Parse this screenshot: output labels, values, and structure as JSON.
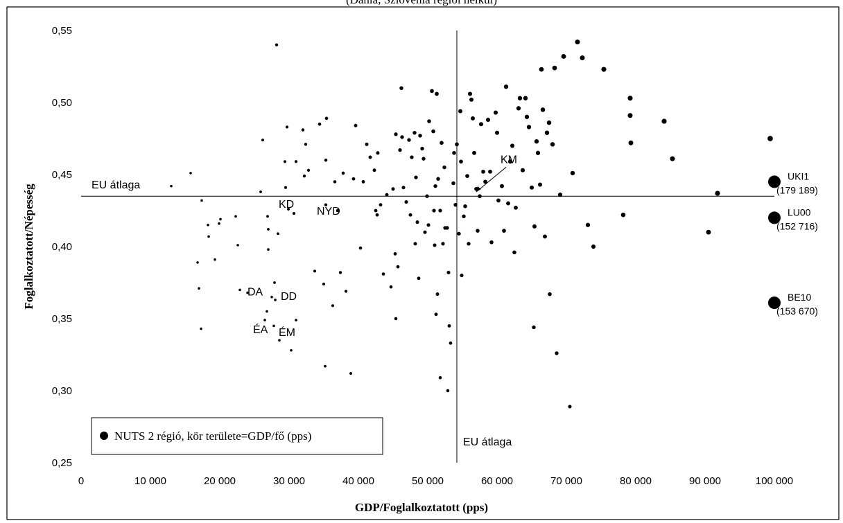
{
  "header": {
    "partial_title": "(Dánia, Szlovénia régiói nélkül)"
  },
  "chart_data": {
    "type": "scatter",
    "xlabel": "GDP/Foglalkoztatott (pps)",
    "ylabel": "Foglalkoztatott/Népesség",
    "xlim": [
      0,
      100000
    ],
    "ylim": [
      0.25,
      0.55
    ],
    "x_ticks": [
      "0",
      "10 000",
      "20 000",
      "30 000",
      "40 000",
      "50 000",
      "60 000",
      "70 000",
      "80 000",
      "90 000",
      "100 000"
    ],
    "y_ticks": [
      "0,25",
      "0,30",
      "0,35",
      "0,40",
      "0,45",
      "0,50",
      "0,55"
    ],
    "eu_average": {
      "x": 54200,
      "y": 0.435
    },
    "eu_avg_label_h": "EU átlaga",
    "eu_avg_label_v": "EU átlaga",
    "legend": "NUTS 2 régió, kör területe=GDP/fő (pps)",
    "labels": [
      {
        "text": "KD",
        "x": 28500,
        "y": 0.427
      },
      {
        "text": "NYD",
        "x": 34000,
        "y": 0.422
      },
      {
        "text": "DA",
        "x": 24000,
        "y": 0.366
      },
      {
        "text": "DD",
        "x": 28800,
        "y": 0.363
      },
      {
        "text": "ÉA",
        "x": 24800,
        "y": 0.34
      },
      {
        "text": "ÉM",
        "x": 28500,
        "y": 0.338
      },
      {
        "text": "KM",
        "x": 60500,
        "y": 0.458
      }
    ],
    "outliers": [
      {
        "code": "UKI1",
        "value": "(179 189)",
        "x": 100000,
        "y": 0.445
      },
      {
        "code": "LU00",
        "value": "(152 716)",
        "x": 100000,
        "y": 0.42
      },
      {
        "code": "BE10",
        "value": "(153 670)",
        "x": 100000,
        "y": 0.361
      }
    ],
    "points": [
      [
        28200,
        0.54
      ],
      [
        13000,
        0.442
      ],
      [
        15800,
        0.451
      ],
      [
        16800,
        0.389
      ],
      [
        17000,
        0.371
      ],
      [
        17400,
        0.432
      ],
      [
        17300,
        0.343
      ],
      [
        18300,
        0.415
      ],
      [
        18400,
        0.407
      ],
      [
        19300,
        0.391
      ],
      [
        19900,
        0.416
      ],
      [
        20100,
        0.419
      ],
      [
        22300,
        0.421
      ],
      [
        22600,
        0.401
      ],
      [
        22900,
        0.37
      ],
      [
        24000,
        0.368
      ],
      [
        25900,
        0.438
      ],
      [
        26200,
        0.474
      ],
      [
        26500,
        0.349
      ],
      [
        26800,
        0.355
      ],
      [
        26900,
        0.421
      ],
      [
        27000,
        0.412
      ],
      [
        27000,
        0.398
      ],
      [
        27500,
        0.365
      ],
      [
        27800,
        0.345
      ],
      [
        27900,
        0.375
      ],
      [
        28000,
        0.363
      ],
      [
        28400,
        0.409
      ],
      [
        28600,
        0.335
      ],
      [
        29400,
        0.459
      ],
      [
        29500,
        0.441
      ],
      [
        29700,
        0.483
      ],
      [
        29900,
        0.426
      ],
      [
        30300,
        0.328
      ],
      [
        30700,
        0.423
      ],
      [
        31000,
        0.459
      ],
      [
        31000,
        0.349
      ],
      [
        32000,
        0.481
      ],
      [
        32200,
        0.449
      ],
      [
        32400,
        0.471
      ],
      [
        32800,
        0.453
      ],
      [
        33700,
        0.383
      ],
      [
        34400,
        0.485
      ],
      [
        35000,
        0.374
      ],
      [
        35200,
        0.317
      ],
      [
        35300,
        0.46
      ],
      [
        35300,
        0.429
      ],
      [
        35400,
        0.489
      ],
      [
        36300,
        0.359
      ],
      [
        36600,
        0.445
      ],
      [
        37000,
        0.425
      ],
      [
        37400,
        0.382
      ],
      [
        37800,
        0.451
      ],
      [
        38200,
        0.369
      ],
      [
        38900,
        0.312
      ],
      [
        39300,
        0.447
      ],
      [
        39600,
        0.484
      ],
      [
        40300,
        0.399
      ],
      [
        40700,
        0.445
      ],
      [
        41200,
        0.471
      ],
      [
        41700,
        0.462
      ],
      [
        42300,
        0.453
      ],
      [
        42500,
        0.425
      ],
      [
        42700,
        0.422
      ],
      [
        42800,
        0.465
      ],
      [
        43200,
        0.429
      ],
      [
        43600,
        0.381
      ],
      [
        44100,
        0.436
      ],
      [
        44700,
        0.372
      ],
      [
        45000,
        0.44
      ],
      [
        45300,
        0.395
      ],
      [
        45400,
        0.478
      ],
      [
        45400,
        0.35
      ],
      [
        45700,
        0.386
      ],
      [
        46000,
        0.467
      ],
      [
        46200,
        0.51
      ],
      [
        46300,
        0.476
      ],
      [
        46500,
        0.441
      ],
      [
        46900,
        0.431
      ],
      [
        47300,
        0.474
      ],
      [
        47500,
        0.422
      ],
      [
        47700,
        0.462
      ],
      [
        48100,
        0.479
      ],
      [
        48200,
        0.402
      ],
      [
        48300,
        0.448
      ],
      [
        48500,
        0.417
      ],
      [
        48700,
        0.378
      ],
      [
        48900,
        0.477
      ],
      [
        49200,
        0.468
      ],
      [
        49400,
        0.461
      ],
      [
        49600,
        0.41
      ],
      [
        49900,
        0.435
      ],
      [
        50100,
        0.415
      ],
      [
        50200,
        0.487
      ],
      [
        50600,
        0.508
      ],
      [
        50800,
        0.48
      ],
      [
        50900,
        0.425
      ],
      [
        51000,
        0.401
      ],
      [
        51100,
        0.442
      ],
      [
        51200,
        0.353
      ],
      [
        51300,
        0.506
      ],
      [
        51400,
        0.367
      ],
      [
        51500,
        0.447
      ],
      [
        51800,
        0.425
      ],
      [
        51800,
        0.309
      ],
      [
        52000,
        0.472
      ],
      [
        52200,
        0.402
      ],
      [
        52400,
        0.455
      ],
      [
        52500,
        0.413
      ],
      [
        52800,
        0.413
      ],
      [
        52900,
        0.3
      ],
      [
        53000,
        0.382
      ],
      [
        53100,
        0.345
      ],
      [
        53300,
        0.333
      ],
      [
        53700,
        0.444
      ],
      [
        53800,
        0.465
      ],
      [
        54000,
        0.429
      ],
      [
        54200,
        0.471
      ],
      [
        54500,
        0.409
      ],
      [
        54700,
        0.494
      ],
      [
        54800,
        0.459
      ],
      [
        54900,
        0.38
      ],
      [
        55200,
        0.421
      ],
      [
        55400,
        0.428
      ],
      [
        55700,
        0.449
      ],
      [
        55900,
        0.402
      ],
      [
        56100,
        0.506
      ],
      [
        56300,
        0.502
      ],
      [
        56500,
        0.489
      ],
      [
        56700,
        0.465
      ],
      [
        57000,
        0.44
      ],
      [
        57200,
        0.411
      ],
      [
        57500,
        0.435
      ],
      [
        57700,
        0.485
      ],
      [
        58000,
        0.452
      ],
      [
        58300,
        0.445
      ],
      [
        58700,
        0.488
      ],
      [
        59000,
        0.452
      ],
      [
        59200,
        0.403
      ],
      [
        59800,
        0.493
      ],
      [
        60000,
        0.479
      ],
      [
        60200,
        0.432
      ],
      [
        60700,
        0.442
      ],
      [
        61000,
        0.411
      ],
      [
        61300,
        0.511
      ],
      [
        61600,
        0.43
      ],
      [
        61900,
        0.459
      ],
      [
        62200,
        0.47
      ],
      [
        62500,
        0.396
      ],
      [
        62700,
        0.427
      ],
      [
        63100,
        0.496
      ],
      [
        63300,
        0.503
      ],
      [
        63700,
        0.453
      ],
      [
        64100,
        0.503
      ],
      [
        64300,
        0.49
      ],
      [
        64600,
        0.483
      ],
      [
        65000,
        0.441
      ],
      [
        65300,
        0.344
      ],
      [
        65400,
        0.414
      ],
      [
        65700,
        0.473
      ],
      [
        65900,
        0.465
      ],
      [
        66200,
        0.443
      ],
      [
        66400,
        0.523
      ],
      [
        66600,
        0.495
      ],
      [
        66900,
        0.407
      ],
      [
        67200,
        0.479
      ],
      [
        67500,
        0.486
      ],
      [
        67600,
        0.367
      ],
      [
        68000,
        0.471
      ],
      [
        68300,
        0.524
      ],
      [
        68600,
        0.326
      ],
      [
        69100,
        0.436
      ],
      [
        69600,
        0.532
      ],
      [
        70500,
        0.289
      ],
      [
        70900,
        0.451
      ],
      [
        71600,
        0.542
      ],
      [
        72300,
        0.531
      ],
      [
        73100,
        0.415
      ],
      [
        73900,
        0.4
      ],
      [
        75400,
        0.523
      ],
      [
        78200,
        0.422
      ],
      [
        79200,
        0.503
      ],
      [
        79200,
        0.491
      ],
      [
        79300,
        0.472
      ],
      [
        84100,
        0.487
      ],
      [
        85300,
        0.461
      ],
      [
        90500,
        0.41
      ],
      [
        91800,
        0.437
      ],
      [
        99400,
        0.475
      ]
    ]
  }
}
